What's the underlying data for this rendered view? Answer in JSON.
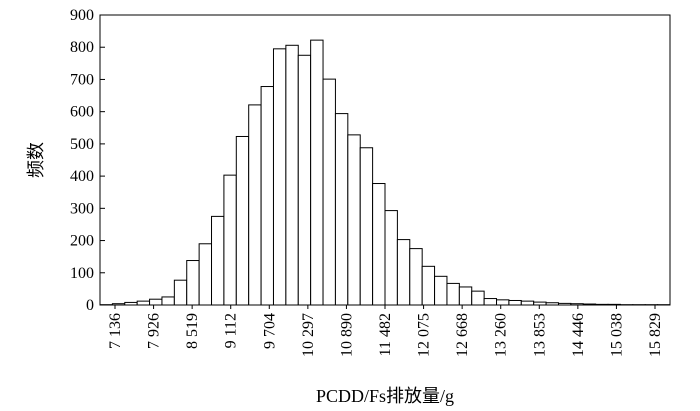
{
  "chart_data": {
    "type": "bar",
    "title": "",
    "xlabel": "PCDD/Fs排放量/g",
    "ylabel": "频数",
    "ylim": [
      0,
      900
    ],
    "yticks": [
      0,
      100,
      200,
      300,
      400,
      500,
      600,
      700,
      800,
      900
    ],
    "ytick_labels": [
      "0",
      "100",
      "200",
      "300",
      "400",
      "500",
      "600",
      "700",
      "800",
      "900"
    ],
    "xtick_labels": [
      "7 136",
      "7 926",
      "8 519",
      "9 112",
      "9 704",
      "10 297",
      "10 890",
      "11 482",
      "12 075",
      "12 668",
      "13 260",
      "13 853",
      "14 446",
      "15 038",
      "15 829"
    ],
    "grid": false,
    "values": [
      1,
      4,
      8,
      12,
      18,
      25,
      77,
      138,
      190,
      275,
      403,
      523,
      621,
      678,
      795,
      806,
      775,
      822,
      701,
      594,
      528,
      488,
      377,
      293,
      203,
      175,
      120,
      89,
      67,
      56,
      43,
      20,
      16,
      14,
      12,
      9,
      7,
      5,
      4,
      3,
      2,
      2,
      1,
      1,
      1,
      1
    ],
    "bar_fill": "#ffffff",
    "bar_edge": "#000000"
  }
}
